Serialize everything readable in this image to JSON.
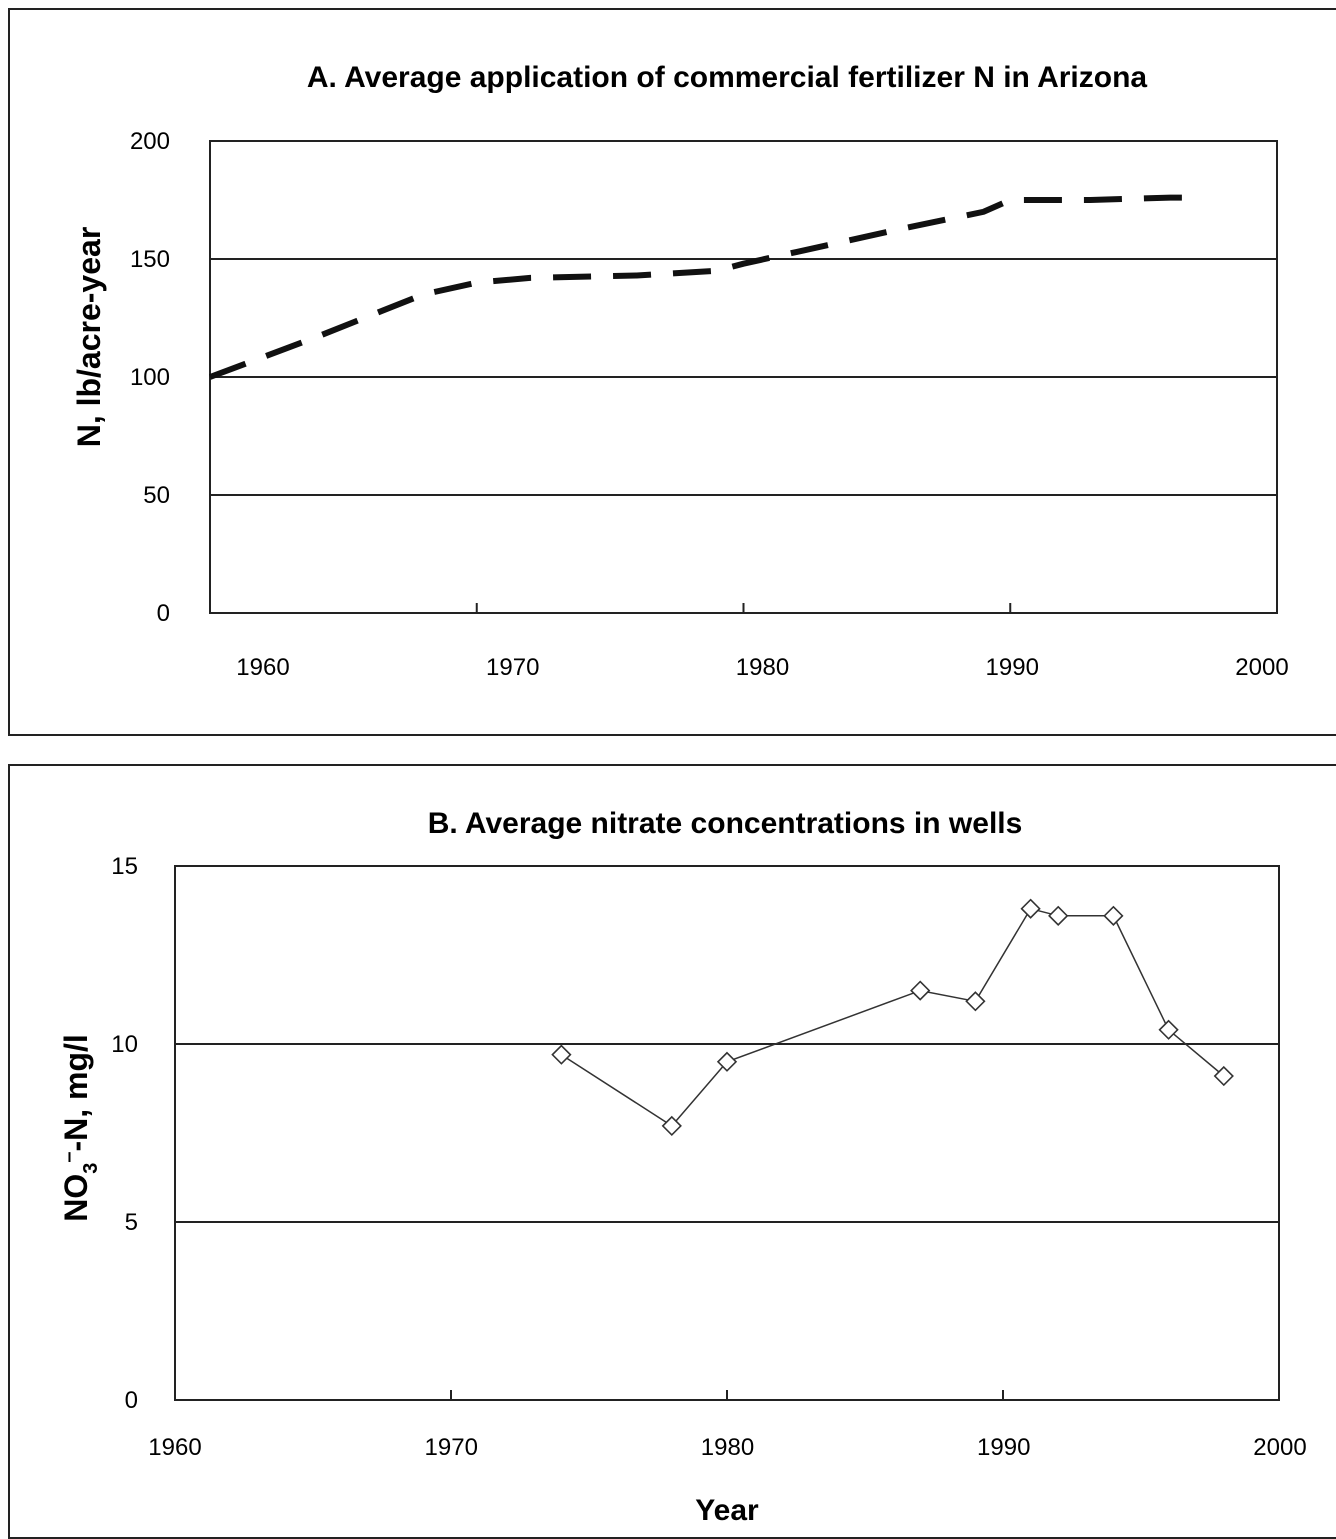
{
  "chart_data": [
    {
      "type": "line",
      "title": "A. Average application of commercial fertilizer N in Arizona",
      "xlabel": "",
      "ylabel": "N, lb/acre-year",
      "xlim": [
        1958,
        1998
      ],
      "ylim": [
        0,
        200
      ],
      "x_ticks": [
        "1960",
        "1970",
        "1980",
        "1990",
        "2000"
      ],
      "y_ticks": [
        "0",
        "50",
        "100",
        "150",
        "200"
      ],
      "grid": "horizontal",
      "series": [
        {
          "style": "dashed",
          "color": "#111111",
          "x": [
            1958,
            1962,
            1966,
            1968,
            1970,
            1974,
            1977,
            1978,
            1980,
            1984,
            1987,
            1988,
            1991,
            1994,
            1995
          ],
          "y": [
            100,
            117,
            135,
            140,
            142,
            143,
            145,
            148,
            153,
            163,
            170,
            175,
            175,
            176,
            176
          ]
        }
      ]
    },
    {
      "type": "line",
      "title": "B. Average nitrate concentrations in wells",
      "xlabel": "Year",
      "ylabel": "NO3–-N, mg/l",
      "ylabel_parts": {
        "main": "NO",
        "sub": "3",
        "sup": "–",
        "rest": "-N, mg/l"
      },
      "xlim": [
        1960,
        2000
      ],
      "ylim": [
        0,
        15
      ],
      "x_ticks": [
        "1960",
        "1970",
        "1980",
        "1990",
        "2000"
      ],
      "y_ticks": [
        "0",
        "5",
        "10",
        "15"
      ],
      "grid": "horizontal",
      "series": [
        {
          "style": "solid",
          "marker": "diamond-open",
          "color": "#333333",
          "x": [
            1974,
            1978,
            1980,
            1987,
            1989,
            1991,
            1992,
            1994,
            1996,
            1998
          ],
          "y": [
            9.7,
            7.7,
            9.5,
            11.5,
            11.2,
            13.8,
            13.6,
            13.6,
            10.4,
            9.1
          ]
        }
      ]
    }
  ]
}
